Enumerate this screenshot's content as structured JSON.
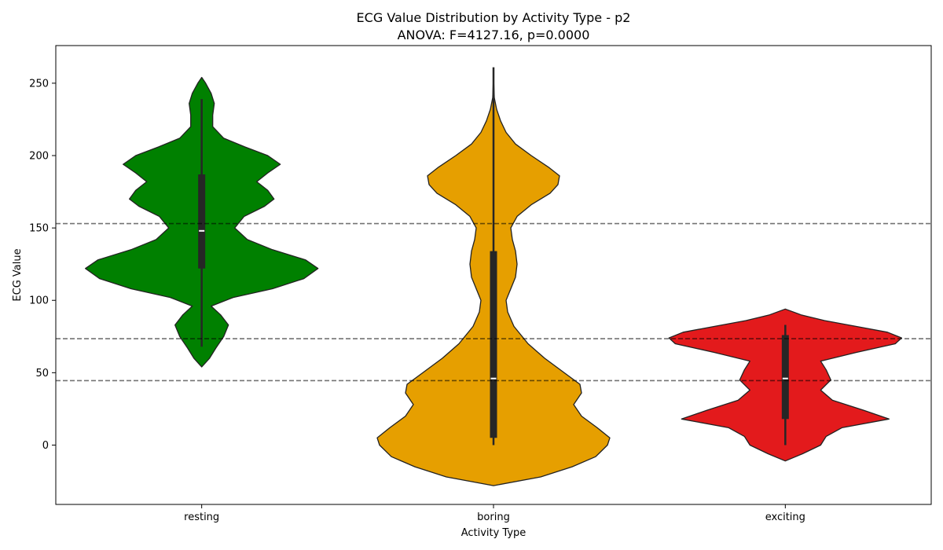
{
  "chart_data": {
    "type": "violin",
    "title": "ECG Value Distribution by Activity Type - p2",
    "subtitle": "ANOVA: F=4127.16, p=0.0000",
    "xlabel": "Activity Type",
    "ylabel": "ECG Value",
    "ylim": [
      -41,
      276
    ],
    "yticks": [
      0,
      50,
      100,
      150,
      200,
      250
    ],
    "categories": [
      "resting",
      "boring",
      "exciting"
    ],
    "reference_lines": [
      153,
      73.5,
      44.5
    ],
    "grid": false,
    "series": [
      {
        "category": "resting",
        "color": "#008000",
        "box": {
          "whisker_low": 68,
          "q1": 122,
          "median": 148,
          "q3": 187,
          "whisker_high": 239
        },
        "density": [
          [
            54,
            0
          ],
          [
            60,
            10
          ],
          [
            67,
            18
          ],
          [
            75,
            28
          ],
          [
            83,
            34
          ],
          [
            90,
            24
          ],
          [
            96,
            12
          ],
          [
            102,
            40
          ],
          [
            108,
            90
          ],
          [
            115,
            130
          ],
          [
            122,
            148
          ],
          [
            128,
            132
          ],
          [
            135,
            90
          ],
          [
            142,
            58
          ],
          [
            150,
            42
          ],
          [
            158,
            54
          ],
          [
            165,
            80
          ],
          [
            170,
            92
          ],
          [
            176,
            84
          ],
          [
            182,
            70
          ],
          [
            188,
            84
          ],
          [
            194,
            100
          ],
          [
            200,
            84
          ],
          [
            206,
            55
          ],
          [
            212,
            28
          ],
          [
            220,
            14
          ],
          [
            228,
            14
          ],
          [
            236,
            16
          ],
          [
            243,
            12
          ],
          [
            250,
            5
          ],
          [
            254,
            0
          ]
        ]
      },
      {
        "category": "boring",
        "color": "#e69f00",
        "box": {
          "whisker_low": 0,
          "q1": 5,
          "median": 46,
          "q3": 134,
          "whisker_high": 261
        },
        "density": [
          [
            -28,
            0
          ],
          [
            -22,
            60
          ],
          [
            -15,
            100
          ],
          [
            -8,
            130
          ],
          [
            0,
            145
          ],
          [
            5,
            148
          ],
          [
            12,
            132
          ],
          [
            20,
            112
          ],
          [
            28,
            102
          ],
          [
            36,
            112
          ],
          [
            42,
            110
          ],
          [
            50,
            90
          ],
          [
            60,
            65
          ],
          [
            70,
            44
          ],
          [
            82,
            26
          ],
          [
            92,
            18
          ],
          [
            100,
            16
          ],
          [
            108,
            22
          ],
          [
            116,
            28
          ],
          [
            125,
            30
          ],
          [
            134,
            28
          ],
          [
            142,
            24
          ],
          [
            150,
            22
          ],
          [
            158,
            30
          ],
          [
            166,
            48
          ],
          [
            174,
            72
          ],
          [
            180,
            82
          ],
          [
            186,
            84
          ],
          [
            192,
            70
          ],
          [
            200,
            48
          ],
          [
            208,
            28
          ],
          [
            216,
            16
          ],
          [
            224,
            9
          ],
          [
            232,
            4
          ],
          [
            240,
            1
          ],
          [
            255,
            0
          ]
        ]
      },
      {
        "category": "exciting",
        "color": "#e31a1c",
        "box": {
          "whisker_low": 0,
          "q1": 18,
          "median": 46,
          "q3": 76,
          "whisker_high": 83
        },
        "density": [
          [
            -11,
            0
          ],
          [
            -6,
            22
          ],
          [
            0,
            45
          ],
          [
            6,
            52
          ],
          [
            12,
            72
          ],
          [
            18,
            132
          ],
          [
            24,
            100
          ],
          [
            31,
            60
          ],
          [
            38,
            45
          ],
          [
            45,
            58
          ],
          [
            52,
            52
          ],
          [
            58,
            45
          ],
          [
            64,
            90
          ],
          [
            70,
            140
          ],
          [
            74,
            148
          ],
          [
            78,
            130
          ],
          [
            82,
            90
          ],
          [
            86,
            50
          ],
          [
            90,
            20
          ],
          [
            94,
            0
          ]
        ]
      }
    ]
  }
}
